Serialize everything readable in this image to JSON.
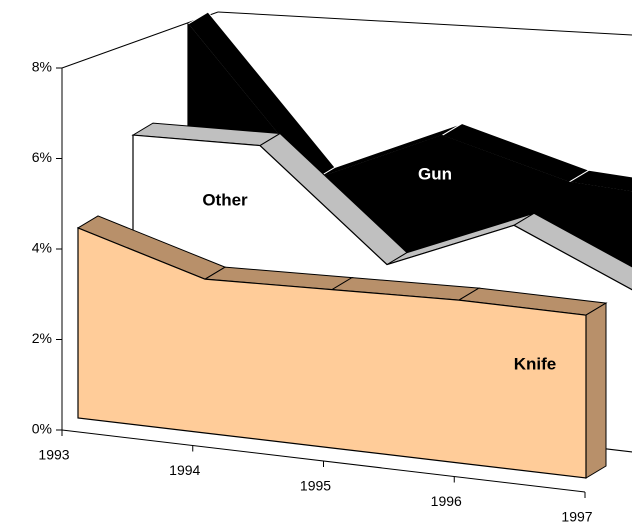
{
  "chart_data": {
    "type": "area3d",
    "categories": [
      "1993",
      "1994",
      "1995",
      "1996",
      "1997"
    ],
    "ylim": [
      0,
      8
    ],
    "yticks": [
      {
        "value": 0,
        "label": "0%"
      },
      {
        "value": 2,
        "label": "2%"
      },
      {
        "value": 4,
        "label": "4%"
      },
      {
        "value": 6,
        "label": "6%"
      },
      {
        "value": 8,
        "label": "8%"
      }
    ],
    "series": [
      {
        "name": "Knife",
        "color": "#ffcc99",
        "values": [
          4.2,
          3.4,
          3.5,
          3.6,
          3.6
        ]
      },
      {
        "name": "Other",
        "color": "#ffffff",
        "values": [
          5.7,
          5.8,
          3.5,
          4.7,
          3.5
        ]
      },
      {
        "name": "Gun",
        "color": "#000000",
        "values": [
          7.6,
          4.5,
          5.8,
          5.1,
          5.0
        ]
      }
    ]
  }
}
